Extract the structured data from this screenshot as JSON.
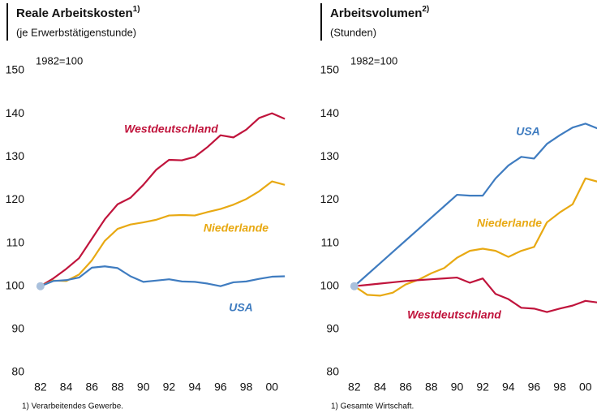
{
  "chart_data": [
    {
      "type": "line",
      "title": "Reale Arbeitskosten",
      "title_note": "1)",
      "subtitle": "(je Erwerbstätigenstunde)",
      "annotation": "1982=100",
      "footnote": "1)  Verarbeitendes Gewerbe.",
      "x": [
        1982,
        1983,
        1984,
        1985,
        1986,
        1987,
        1988,
        1989,
        1990,
        1991,
        1992,
        1993,
        1994,
        1995,
        1996,
        1997,
        1998,
        1999,
        2000,
        2001
      ],
      "xlim": [
        1981,
        2002
      ],
      "xticks": [
        {
          "value": 1982,
          "label": "82"
        },
        {
          "value": 1984,
          "label": "84"
        },
        {
          "value": 1986,
          "label": "86"
        },
        {
          "value": 1988,
          "label": "88"
        },
        {
          "value": 1990,
          "label": "90"
        },
        {
          "value": 1992,
          "label": "92"
        },
        {
          "value": 1994,
          "label": "94"
        },
        {
          "value": 1996,
          "label": "96"
        },
        {
          "value": 1998,
          "label": "98"
        },
        {
          "value": 2000,
          "label": "00"
        }
      ],
      "ylim": [
        80,
        150
      ],
      "yticks": [
        80,
        90,
        100,
        110,
        120,
        130,
        140,
        150
      ],
      "series": [
        {
          "name": "Westdeutschland",
          "color": "#c0143c",
          "values": [
            100,
            101.8,
            104,
            106.5,
            111,
            115.5,
            119,
            120.5,
            123.5,
            127,
            129.3,
            129.2,
            130,
            132.3,
            135,
            134.5,
            136.3,
            139,
            140.1,
            138.8
          ]
        },
        {
          "name": "Niederlande",
          "color": "#e8a913",
          "values": [
            100,
            101.3,
            101.2,
            102.7,
            106,
            110.5,
            113.3,
            114.3,
            114.8,
            115.4,
            116.4,
            116.5,
            116.4,
            117.2,
            117.9,
            118.9,
            120.2,
            122,
            124.3,
            123.5
          ]
        },
        {
          "name": "USA",
          "color": "#3f7cc0",
          "values": [
            100,
            101.2,
            101.4,
            102,
            104.3,
            104.6,
            104.2,
            102.3,
            101,
            101.3,
            101.6,
            101.1,
            101,
            100.6,
            100,
            100.9,
            101.1,
            101.7,
            102.2,
            102.3
          ]
        }
      ]
    },
    {
      "type": "line",
      "title": "Arbeitsvolumen",
      "title_note": "2)",
      "subtitle": "(Stunden)",
      "annotation": "1982=100",
      "footnote": "1)  Gesamte Wirtschaft.",
      "x": [
        1982,
        1983,
        1984,
        1985,
        1986,
        1987,
        1988,
        1989,
        1990,
        1991,
        1992,
        1993,
        1994,
        1995,
        1996,
        1997,
        1998,
        1999,
        2000,
        2001
      ],
      "xlim": [
        1981,
        2000.9
      ],
      "xticks": [
        {
          "value": 1982,
          "label": "82"
        },
        {
          "value": 1984,
          "label": "84"
        },
        {
          "value": 1986,
          "label": "86"
        },
        {
          "value": 1988,
          "label": "88"
        },
        {
          "value": 1990,
          "label": "90"
        },
        {
          "value": 1992,
          "label": "92"
        },
        {
          "value": 1994,
          "label": "94"
        },
        {
          "value": 1996,
          "label": "96"
        },
        {
          "value": 1998,
          "label": "98"
        },
        {
          "value": 2000,
          "label": "00"
        }
      ],
      "ylim": [
        80,
        150
      ],
      "yticks": [
        80,
        90,
        100,
        110,
        120,
        130,
        140,
        150
      ],
      "series": [
        {
          "name": "USA",
          "color": "#3f7cc0",
          "values": [
            100,
            102.65,
            105.3,
            107.95,
            110.6,
            113.25,
            115.9,
            118.55,
            121.2,
            121,
            121,
            125,
            128,
            130,
            129.6,
            133,
            135,
            136.8,
            137.7,
            136.5
          ]
        },
        {
          "name": "Niederlande",
          "color": "#e8a913",
          "values": [
            100,
            98,
            97.8,
            98.5,
            100.4,
            101.5,
            103,
            104.2,
            106.6,
            108.2,
            108.7,
            108.2,
            106.8,
            108.2,
            109.1,
            114.8,
            117.1,
            119,
            125,
            124.2
          ]
        },
        {
          "name": "Westdeutschland",
          "color": "#c0143c",
          "values": [
            100,
            100.3,
            100.6,
            100.9,
            101.2,
            101.4,
            101.6,
            101.8,
            102,
            100.8,
            101.8,
            98.2,
            97,
            95,
            94.8,
            94,
            94.8,
            95.5,
            96.6,
            96.2
          ]
        }
      ]
    }
  ]
}
